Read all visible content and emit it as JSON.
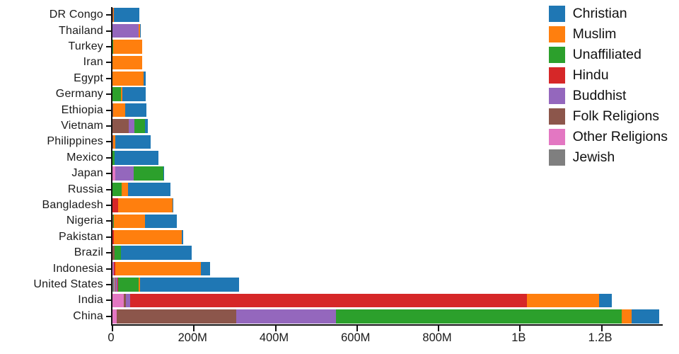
{
  "chart_data": {
    "type": "bar",
    "orientation": "horizontal",
    "stacked": true,
    "title": "",
    "xlabel": "",
    "ylabel": "",
    "grid": false,
    "legend_position": "top-right",
    "xlim": [
      0,
      1350
    ],
    "units": "millions of people",
    "categories": [
      "DR Congo",
      "Thailand",
      "Turkey",
      "Iran",
      "Egypt",
      "Germany",
      "Ethiopia",
      "Vietnam",
      "Philippines",
      "Mexico",
      "Japan",
      "Russia",
      "Bangladesh",
      "Nigeria",
      "Pakistan",
      "Brazil",
      "Indonesia",
      "United States",
      "India",
      "China"
    ],
    "series": [
      {
        "name": "Christian",
        "color": "#1f77b4",
        "values": [
          63.21,
          0.62,
          0.29,
          0.12,
          4.14,
          56.54,
          52.07,
          7.2,
          86.37,
          107.83,
          2.02,
          104.75,
          0.74,
          78.05,
          2.75,
          173.3,
          23.66,
          243.06,
          31.13,
          68.41
        ]
      },
      {
        "name": "Muslim",
        "color": "#ff7f0e",
        "values": [
          0.99,
          3.8,
          71.33,
          73.6,
          76.99,
          4.77,
          28.7,
          0.16,
          5.13,
          0.0,
          0.13,
          14.29,
          133.54,
          76.29,
          167.41,
          0.04,
          209.12,
          2.77,
          176.2,
          24.69
        ]
      },
      {
        "name": "Unaffiliated",
        "color": "#2ca02c",
        "values": [
          0.59,
          0.21,
          0.87,
          0.07,
          0.0,
          20.35,
          0.33,
          26.04,
          0.09,
          5.33,
          72.12,
          23.18,
          0.15,
          0.75,
          0.02,
          15.4,
          0.24,
          50.98,
          0.87,
          700.68
        ]
      },
      {
        "name": "Hindu",
        "color": "#d62728",
        "values": [
          0.0,
          0.07,
          0.0,
          0.0,
          0.0,
          0.08,
          0.0,
          0.05,
          0.0,
          0.0,
          0.03,
          0.04,
          13.52,
          0.0,
          3.33,
          0.0,
          4.05,
          1.86,
          973.75,
          0.02
        ]
      },
      {
        "name": "Buddhist",
        "color": "#9467bd",
        "values": [
          0.0,
          64.42,
          0.02,
          0.0,
          0.0,
          0.25,
          0.0,
          14.38,
          0.09,
          0.01,
          45.82,
          0.14,
          0.74,
          0.0,
          0.02,
          0.19,
          1.72,
          3.57,
          9.25,
          244.13
        ]
      },
      {
        "name": "Folk Religions",
        "color": "#8c564b",
        "values": [
          1.19,
          0.07,
          0.22,
          0.07,
          0.0,
          0.08,
          2.15,
          39.75,
          1.4,
          0.11,
          0.51,
          0.29,
          0.15,
          2.23,
          0.02,
          5.46,
          0.72,
          0.62,
          5.84,
          294.32
        ]
      },
      {
        "name": "Other Religions",
        "color": "#e377c2",
        "values": [
          0.07,
          0.01,
          0.02,
          0.22,
          0.0,
          0.08,
          0.07,
          0.35,
          0.19,
          0.11,
          6.2,
          0.29,
          0.0,
          0.16,
          0.02,
          0.58,
          0.96,
          1.86,
          27.56,
          9.9
        ]
      },
      {
        "name": "Jewish",
        "color": "#7f7f7f",
        "values": [
          0.0,
          0.0,
          0.02,
          0.01,
          0.0,
          0.25,
          0.0,
          0.0,
          0.0,
          0.11,
          0.0,
          0.29,
          0.0,
          0.0,
          0.0,
          0.19,
          0.0,
          5.69,
          0.0,
          0.0
        ]
      }
    ],
    "stack_order": [
      "Jewish",
      "Other Religions",
      "Folk Religions",
      "Buddhist",
      "Hindu",
      "Unaffiliated",
      "Muslim",
      "Christian"
    ],
    "x_ticks": [
      {
        "value": 0,
        "label": "0"
      },
      {
        "value": 200,
        "label": "200M"
      },
      {
        "value": 400,
        "label": "400M"
      },
      {
        "value": 600,
        "label": "600M"
      },
      {
        "value": 800,
        "label": "800M"
      },
      {
        "value": 1000,
        "label": "1B"
      },
      {
        "value": 1200,
        "label": "1.2B"
      }
    ]
  },
  "colors": {
    "background": "#ffffff",
    "axis": "#111111",
    "text": "#1a1a1a"
  }
}
